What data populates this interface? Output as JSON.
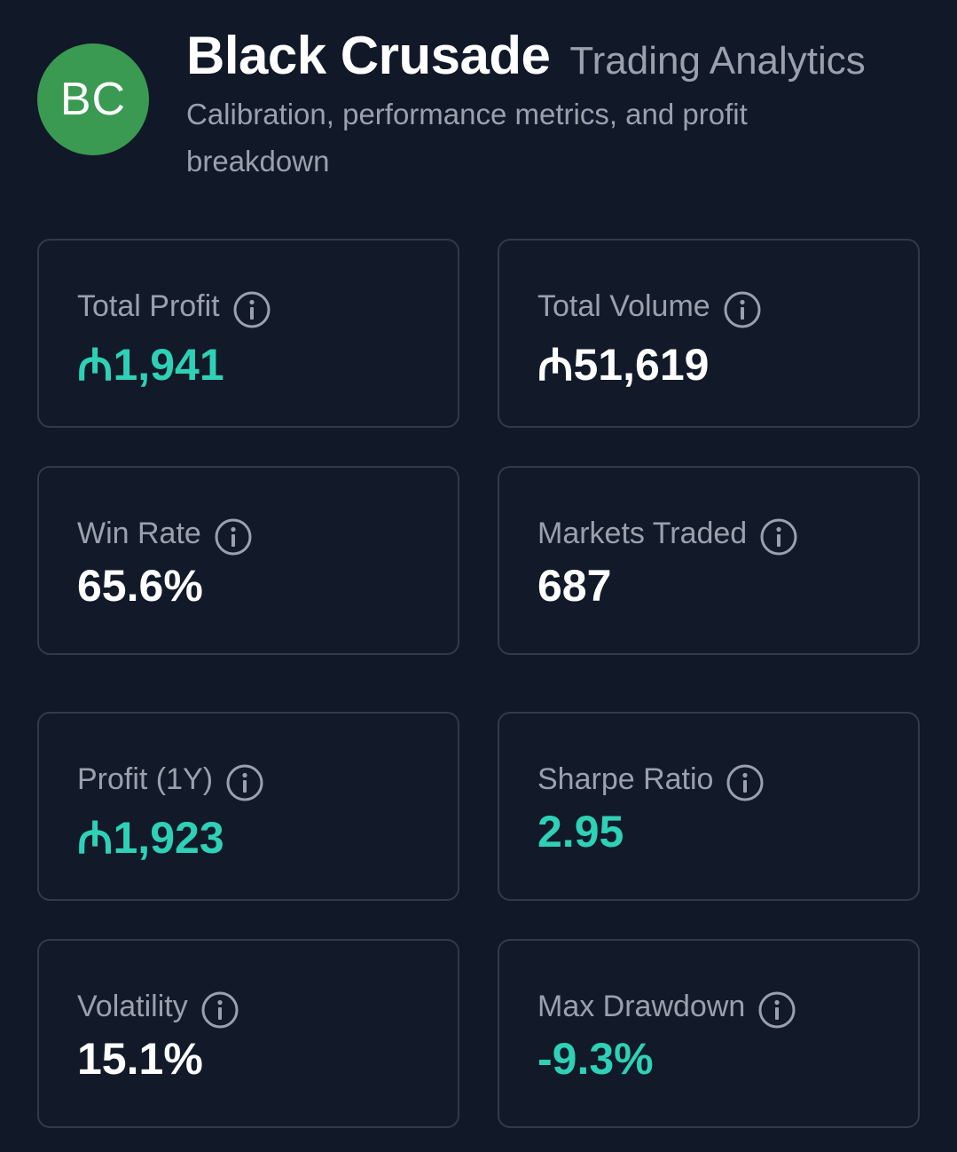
{
  "header": {
    "avatar_initials": "BC",
    "title": "Black Crusade",
    "title_suffix": "Trading Analytics",
    "subtitle": "Calibration, performance metrics, and profit breakdown"
  },
  "colors": {
    "background": "#111828",
    "card_border": "#323a4a",
    "avatar": "#3a9a52",
    "positive_accent": "#2ed1b5",
    "muted_text": "#9aa1ad"
  },
  "metrics": [
    {
      "label": "Total Profit",
      "value": "₼1,941",
      "icon": "info-icon"
    },
    {
      "label": "Total Volume",
      "value": "₼51,619",
      "icon": "info-icon"
    },
    {
      "label": "Win Rate",
      "value": "65.6%",
      "icon": "info-icon"
    },
    {
      "label": "Markets Traded",
      "value": "687",
      "icon": "info-icon"
    },
    {
      "label": "Profit (1Y)",
      "value": "₼1,923",
      "icon": "info-icon"
    },
    {
      "label": "Sharpe Ratio",
      "value": "2.95",
      "icon": "info-icon"
    },
    {
      "label": "Volatility",
      "value": "15.1%",
      "icon": "info-icon"
    },
    {
      "label": "Max Drawdown",
      "value": "-9.3%",
      "icon": "info-icon"
    }
  ]
}
